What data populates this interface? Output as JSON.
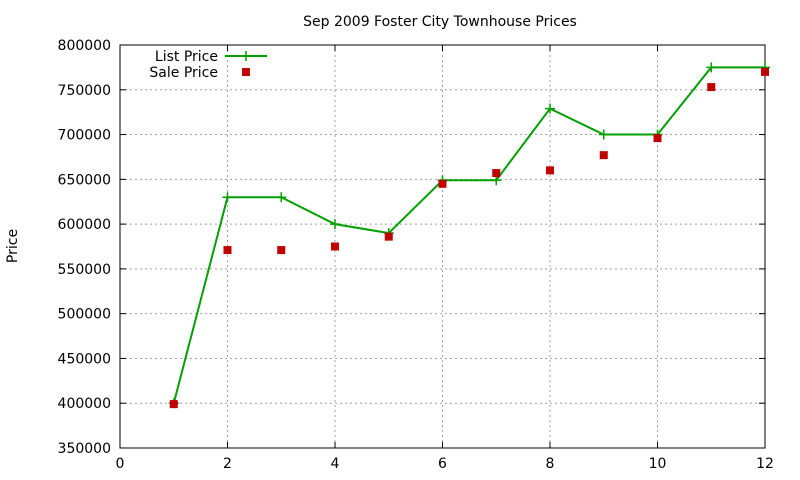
{
  "chart_data": {
    "type": "line",
    "title": "Sep 2009 Foster City Townhouse Prices",
    "xlabel": "",
    "ylabel": "Price",
    "xlim": [
      0,
      12
    ],
    "ylim": [
      350000,
      800000
    ],
    "xticks": [
      0,
      2,
      4,
      6,
      8,
      10,
      12
    ],
    "yticks": [
      350000,
      400000,
      450000,
      500000,
      550000,
      600000,
      650000,
      700000,
      750000,
      800000
    ],
    "grid": true,
    "legend_position": "top-left",
    "series": [
      {
        "name": "List Price",
        "style": "linespoints",
        "marker": "plus",
        "color": "#00a000",
        "x": [
          1,
          2,
          3,
          4,
          5,
          6,
          7,
          8,
          9,
          10,
          11,
          12
        ],
        "values": [
          400000,
          630000,
          630000,
          600000,
          590000,
          649000,
          649000,
          729000,
          700000,
          700000,
          775000,
          775000
        ]
      },
      {
        "name": "Sale Price",
        "style": "points",
        "marker": "square",
        "color": "#c00000",
        "x": [
          1,
          2,
          3,
          4,
          5,
          6,
          7,
          8,
          9,
          10,
          11,
          12
        ],
        "values": [
          399000,
          571000,
          571000,
          575000,
          586000,
          645000,
          657000,
          660000,
          677000,
          696000,
          753000,
          770000
        ]
      }
    ]
  }
}
